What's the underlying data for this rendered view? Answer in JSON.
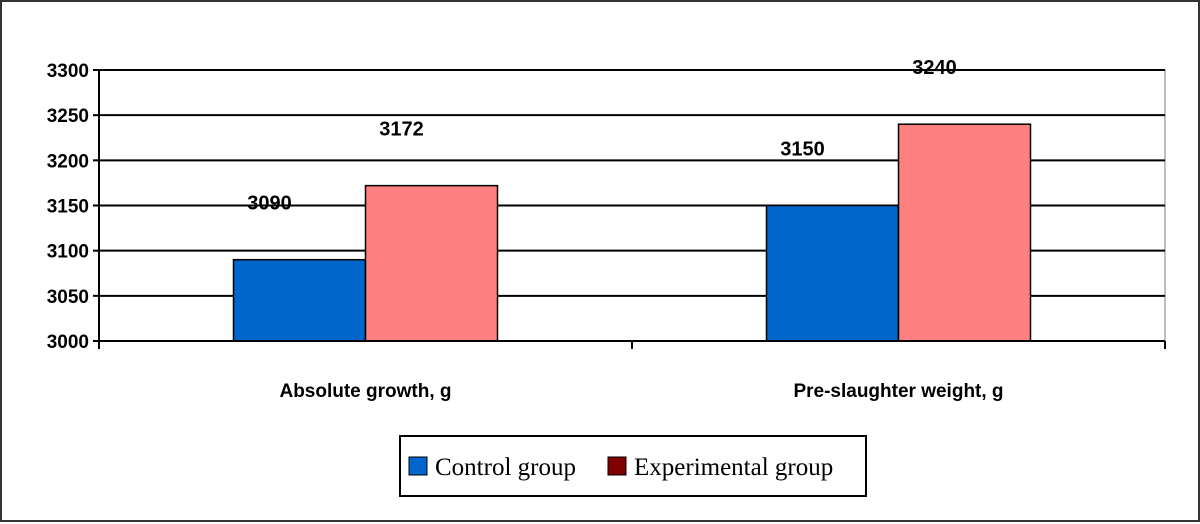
{
  "chart_data": {
    "type": "bar",
    "title": "",
    "xlabel": "",
    "ylabel": "",
    "categories": [
      "Absolute growth, g",
      "Pre-slaughter weight, g"
    ],
    "series": [
      {
        "name": "Control group",
        "values": [
          3090,
          3150
        ],
        "color": "#0066CC",
        "legend_color": "#0066CC"
      },
      {
        "name": "Experimental group",
        "values": [
          3172,
          3240
        ],
        "color": "#FF8080",
        "legend_color": "#800000"
      }
    ],
    "ylim": [
      3000,
      3300
    ],
    "yticks": [
      3000,
      3050,
      3100,
      3150,
      3200,
      3250,
      3300
    ],
    "data_labels": [
      [
        "3090",
        "3150"
      ],
      [
        "3172",
        "3240"
      ]
    ],
    "grid": true,
    "legend_position": "bottom-center"
  }
}
